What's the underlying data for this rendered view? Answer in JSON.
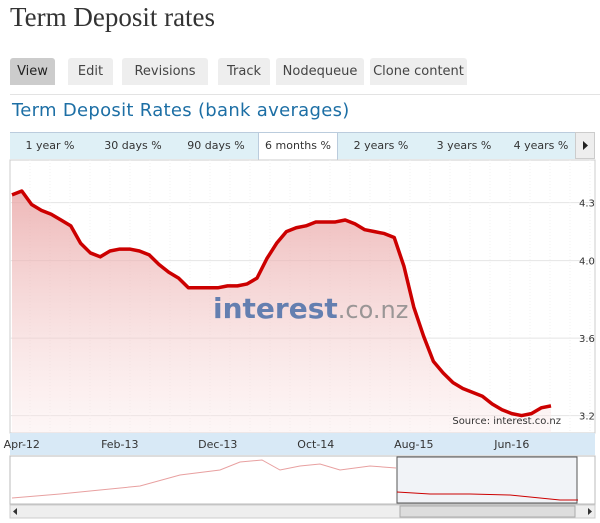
{
  "page": {
    "title": "Term Deposit rates",
    "tabs": [
      "View",
      "Edit",
      "Revisions",
      "Track",
      "Nodequeue",
      "Clone content"
    ]
  },
  "range_buttons": [
    "1 year %",
    "30 days %",
    "90 days %",
    "6 months %",
    "2 years %",
    "3 years %",
    "4 years %"
  ],
  "chart_data": {
    "type": "line",
    "title": "Term Deposit Rates (bank averages)",
    "watermark": [
      "interest",
      ".co.nz"
    ],
    "source": "Source: interest.co.nz",
    "categories": [
      null,
      "Apr-12",
      null,
      null,
      null,
      null,
      null,
      null,
      null,
      null,
      null,
      "Feb-13",
      null,
      null,
      null,
      null,
      null,
      null,
      null,
      null,
      null,
      "Dec-13",
      null,
      null,
      null,
      null,
      null,
      null,
      null,
      null,
      null,
      "Oct-14",
      null,
      null,
      null,
      null,
      null,
      null,
      null,
      null,
      null,
      "Aug-15",
      null,
      null,
      null,
      null,
      null,
      null,
      null,
      null,
      null,
      "Jun-16",
      null,
      null,
      null,
      null
    ],
    "values": [
      4.34,
      4.36,
      4.29,
      4.26,
      4.24,
      4.21,
      4.18,
      4.09,
      4.04,
      4.02,
      4.05,
      4.06,
      4.06,
      4.05,
      4.03,
      3.98,
      3.94,
      3.91,
      3.86,
      3.86,
      3.86,
      3.86,
      3.87,
      3.87,
      3.88,
      3.91,
      4.01,
      4.09,
      4.15,
      4.17,
      4.18,
      4.2,
      4.2,
      4.2,
      4.21,
      4.19,
      4.16,
      4.15,
      4.14,
      4.12,
      3.97,
      3.76,
      3.61,
      3.48,
      3.42,
      3.37,
      3.34,
      3.32,
      3.3,
      3.26,
      3.23,
      3.21,
      3.2,
      3.21,
      3.24,
      3.25
    ],
    "color": "#cc0000",
    "ylim": [
      3.11,
      4.52
    ],
    "yticks": [
      3.2,
      3.6,
      {
        "value": 4,
        "label": "4.0"
      },
      4.3
    ],
    "grid": true
  }
}
